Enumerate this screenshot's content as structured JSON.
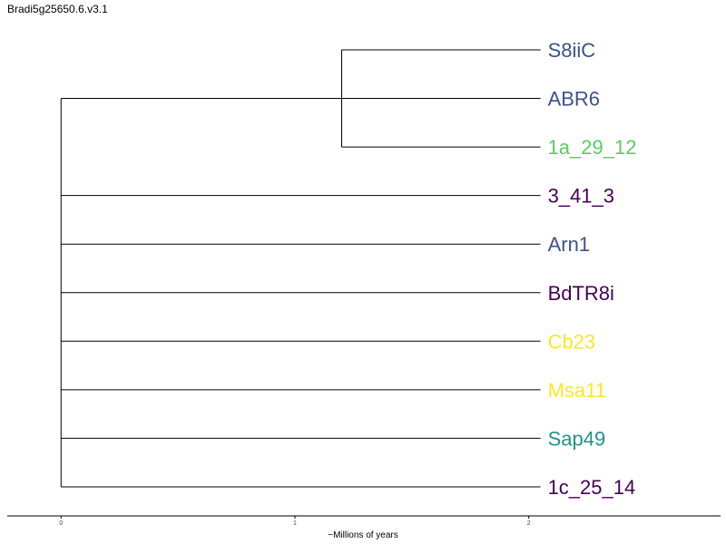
{
  "title": "Bradi5g25650.6.v3.1",
  "chart_data": {
    "type": "dendrogram",
    "xlabel": "~Millions of years",
    "x_ticks": [
      "0",
      "1",
      "2"
    ],
    "xlim": [
      -0.23,
      2.82
    ],
    "leaves": [
      {
        "label": "S8iiC",
        "color": "#3b528b"
      },
      {
        "label": "ABR6",
        "color": "#3b528b"
      },
      {
        "label": "1a_29_12",
        "color": "#5ec962"
      },
      {
        "label": "3_41_3",
        "color": "#440154"
      },
      {
        "label": "Arn1",
        "color": "#3b528b"
      },
      {
        "label": "BdTR8i",
        "color": "#440154"
      },
      {
        "label": "Cb23",
        "color": "#fde725"
      },
      {
        "label": "Msa11",
        "color": "#fde725"
      },
      {
        "label": "Sap49",
        "color": "#21918c"
      },
      {
        "label": "1c_25_14",
        "color": "#440154"
      }
    ],
    "clades": [
      {
        "members": [
          "S8iiC",
          "1a_29_12"
        ],
        "node_age": 1.2
      }
    ],
    "root_age": 0,
    "tip_age": 2.05
  }
}
